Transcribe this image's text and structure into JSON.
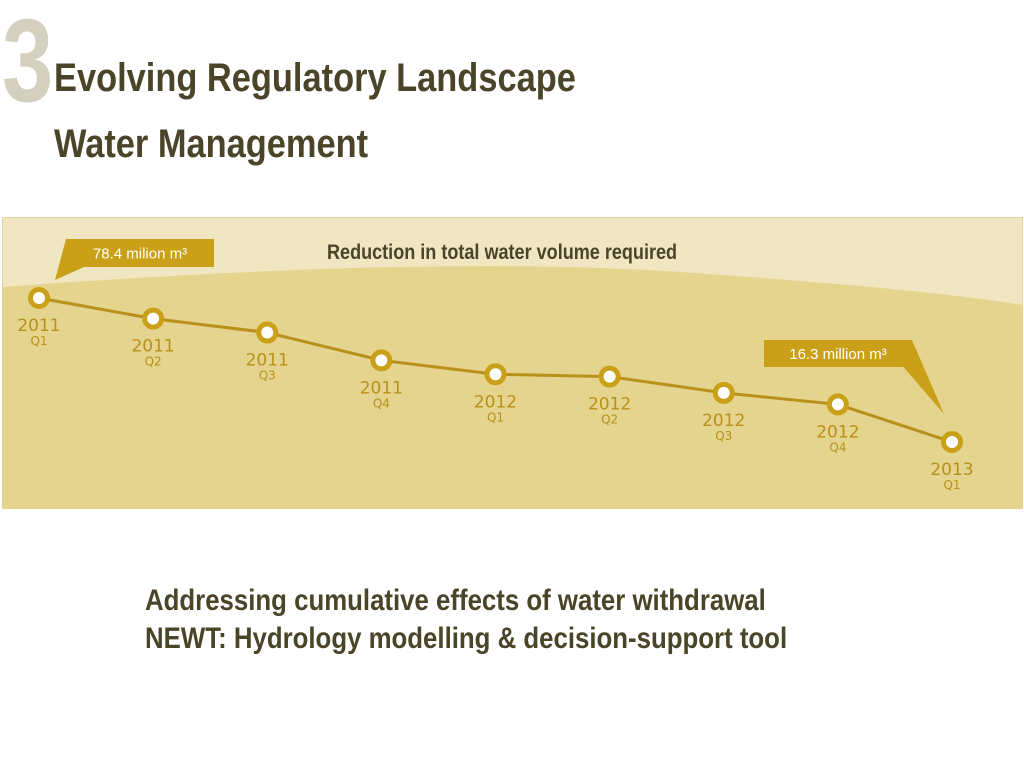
{
  "slide": {
    "number": "3",
    "title_line1": "Evolving Regulatory Landscape",
    "title_line2": "Water Management",
    "bullets": [
      "Addressing cumulative effects of water withdrawal",
      "NEWT: Hydrology modelling & decision-support tool"
    ]
  },
  "colors": {
    "title_text": "#4a4428",
    "number_watermark": "#d4d0bf",
    "panel_light": "#f0e6c2",
    "panel_dark": "#e5d48e",
    "accent_gold": "#c9a017",
    "label_gold": "#b8901a"
  },
  "chart_data": {
    "type": "line",
    "title": "Reduction in total water volume required",
    "xlabel": "",
    "ylabel": "",
    "unit": "million m³",
    "categories": [
      {
        "year": "2011",
        "quarter": "Q1"
      },
      {
        "year": "2011",
        "quarter": "Q2"
      },
      {
        "year": "2011",
        "quarter": "Q3"
      },
      {
        "year": "2011",
        "quarter": "Q4"
      },
      {
        "year": "2012",
        "quarter": "Q1"
      },
      {
        "year": "2012",
        "quarter": "Q2"
      },
      {
        "year": "2012",
        "quarter": "Q3"
      },
      {
        "year": "2012",
        "quarter": "Q4"
      },
      {
        "year": "2013",
        "quarter": "Q1"
      }
    ],
    "values": [
      78.4,
      69.5,
      63.5,
      51.5,
      45.5,
      44.5,
      37.5,
      32.5,
      16.3
    ],
    "ylim": [
      16.3,
      78.4
    ],
    "grid": false,
    "legend": "none",
    "annotations": [
      {
        "index": 0,
        "text": "78.4 milion m³"
      },
      {
        "index": 8,
        "text": "16.3 million m³"
      }
    ]
  }
}
